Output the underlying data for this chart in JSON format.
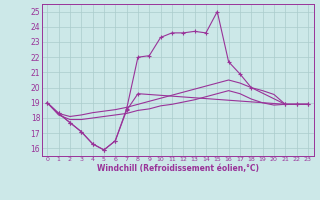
{
  "bg_color": "#cce8e8",
  "line_color": "#993399",
  "grid_color": "#aacccc",
  "xlabel": "Windchill (Refroidissement éolien,°C)",
  "ylim": [
    15.5,
    25.5
  ],
  "xlim": [
    -0.5,
    23.5
  ],
  "yticks": [
    16,
    17,
    18,
    19,
    20,
    21,
    22,
    23,
    24,
    25
  ],
  "xticks": [
    0,
    1,
    2,
    3,
    4,
    5,
    6,
    7,
    8,
    9,
    10,
    11,
    12,
    13,
    14,
    15,
    16,
    17,
    18,
    19,
    20,
    21,
    22,
    23
  ],
  "line1_x": [
    0,
    1,
    2,
    3,
    4,
    5,
    6,
    7,
    8,
    21,
    22,
    23
  ],
  "line1_y": [
    19.0,
    18.3,
    17.7,
    17.1,
    16.3,
    15.9,
    16.5,
    18.5,
    19.6,
    18.9,
    18.9,
    18.9
  ],
  "line2_x": [
    0,
    1,
    2,
    3,
    4,
    5,
    6,
    7,
    8,
    9,
    10,
    11,
    12,
    13,
    14,
    15,
    16,
    17,
    18,
    21,
    22,
    23
  ],
  "line2_y": [
    19.0,
    18.3,
    17.7,
    17.1,
    16.3,
    15.9,
    16.5,
    18.6,
    22.0,
    22.1,
    23.3,
    23.6,
    23.6,
    23.7,
    23.6,
    25.0,
    21.7,
    20.9,
    20.0,
    18.9,
    18.9,
    18.9
  ],
  "line3_x": [
    0,
    1,
    2,
    3,
    4,
    5,
    6,
    7,
    8,
    9,
    10,
    11,
    12,
    13,
    14,
    15,
    16,
    17,
    18,
    19,
    20,
    21,
    22,
    23
  ],
  "line3_y": [
    19.0,
    18.3,
    18.1,
    18.2,
    18.35,
    18.45,
    18.55,
    18.7,
    18.9,
    19.1,
    19.3,
    19.5,
    19.7,
    19.9,
    20.1,
    20.3,
    20.5,
    20.3,
    20.0,
    19.8,
    19.55,
    18.9,
    18.9,
    18.9
  ],
  "line4_x": [
    0,
    1,
    2,
    3,
    4,
    5,
    6,
    7,
    8,
    9,
    10,
    11,
    12,
    13,
    14,
    15,
    16,
    17,
    18,
    19,
    20,
    21,
    22,
    23
  ],
  "line4_y": [
    19.0,
    18.2,
    17.9,
    17.9,
    18.0,
    18.1,
    18.2,
    18.3,
    18.5,
    18.6,
    18.8,
    18.9,
    19.05,
    19.2,
    19.4,
    19.6,
    19.8,
    19.6,
    19.25,
    19.0,
    18.85,
    18.9,
    18.9,
    18.9
  ]
}
